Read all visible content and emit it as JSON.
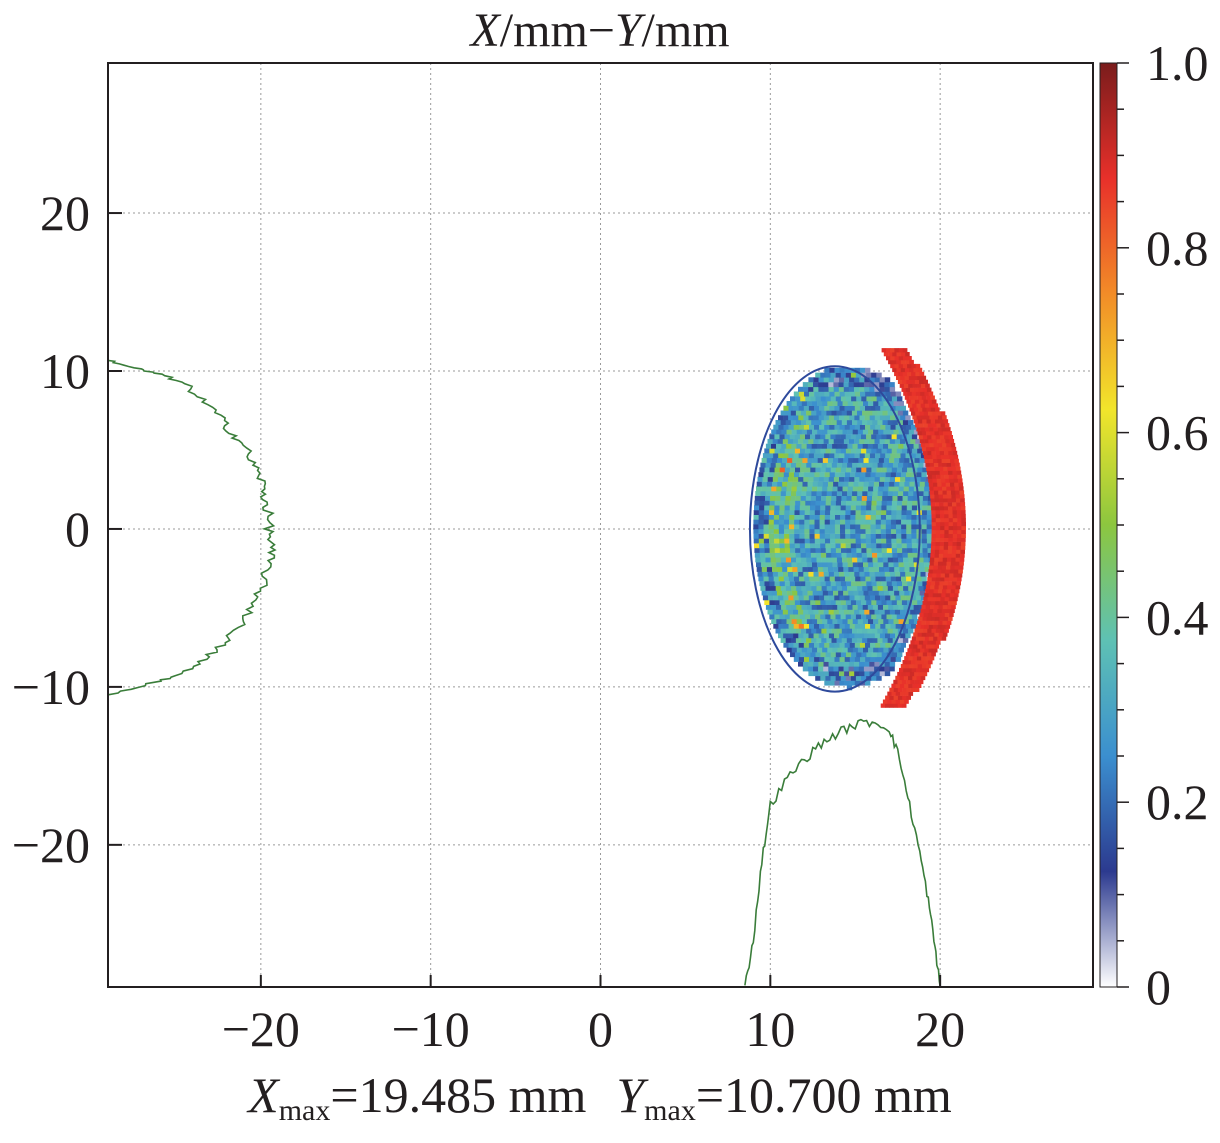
{
  "chart_data": {
    "type": "heatmap",
    "title": {
      "x_var": "X",
      "sep1": "/mm−",
      "y_var": "Y",
      "sep2": "/mm"
    },
    "xlim": [
      -29,
      29
    ],
    "ylim": [
      -29,
      29.5
    ],
    "x_ticks": [
      -20,
      -10,
      0,
      10,
      20
    ],
    "x_tick_labels": [
      "−20",
      "−10",
      "0",
      "10",
      "20"
    ],
    "y_ticks": [
      20,
      10,
      0,
      -10,
      -20
    ],
    "y_tick_labels": [
      "20",
      "10",
      "0",
      "−10",
      "−20"
    ],
    "grid": true,
    "colorbar": {
      "range": [
        0,
        1
      ],
      "ticks": [
        0,
        0.2,
        0.4,
        0.6,
        0.8,
        1.0
      ],
      "tick_labels": [
        "0",
        "0.2",
        "0.4",
        "0.6",
        "0.8",
        "1.0"
      ],
      "colors": [
        "#ffffff",
        "#2c3a8f",
        "#3b8fcf",
        "#5ec1b4",
        "#8cc63f",
        "#f2e52b",
        "#f28c28",
        "#e8302a",
        "#7a1c1c"
      ]
    },
    "beam_spot": {
      "center_x": 14.5,
      "center_y": 0,
      "radius_x": 5.5,
      "radius_y": 10.2,
      "mean_intensity": 0.3
    },
    "beam_ellipse_outline": {
      "center_x": 13.8,
      "center_y": 0,
      "radius_x": 5.0,
      "radius_y": 10.3,
      "color": "#2e4a9c"
    },
    "crescent": {
      "inner_x_at_center": 19.5,
      "outer_x_at_center": 21.5,
      "y_min": -11.3,
      "y_max": 11.3,
      "intensity": 0.88,
      "color": "#e02a2a"
    },
    "y_projection": {
      "color": "#3a7d3a",
      "points": [
        [
          -29,
          10.7
        ],
        [
          -27.5,
          10.2
        ],
        [
          -26,
          9.8
        ],
        [
          -24.5,
          9.2
        ],
        [
          -23.5,
          8.2
        ],
        [
          -22.5,
          7.2
        ],
        [
          -21.8,
          6.2
        ],
        [
          -21,
          5.3
        ],
        [
          -20.5,
          4.2
        ],
        [
          -20,
          3.2
        ],
        [
          -19.8,
          2.2
        ],
        [
          -19.6,
          1.2
        ],
        [
          -19.5,
          0
        ],
        [
          -19.4,
          -1
        ],
        [
          -19.5,
          -2
        ],
        [
          -19.8,
          -3.2
        ],
        [
          -20.2,
          -4.3
        ],
        [
          -20.8,
          -5.5
        ],
        [
          -21.6,
          -6.6
        ],
        [
          -22.5,
          -7.5
        ],
        [
          -23.5,
          -8.4
        ],
        [
          -25,
          -9.3
        ],
        [
          -26.5,
          -9.8
        ],
        [
          -29,
          -10.5
        ]
      ]
    },
    "x_projection": {
      "color": "#3a7d3a",
      "points": [
        [
          8.5,
          -29
        ],
        [
          9,
          -26
        ],
        [
          9.5,
          -21
        ],
        [
          10,
          -17.5
        ],
        [
          11,
          -15.8
        ],
        [
          12,
          -14.6
        ],
        [
          13,
          -13.6
        ],
        [
          14,
          -12.9
        ],
        [
          15,
          -12.4
        ],
        [
          16,
          -12.2
        ],
        [
          17,
          -12.6
        ],
        [
          17.6,
          -14.5
        ],
        [
          18.2,
          -17.5
        ],
        [
          18.8,
          -20.5
        ],
        [
          19.3,
          -23.5
        ],
        [
          19.7,
          -26.5
        ],
        [
          20,
          -29
        ]
      ]
    }
  },
  "footer": {
    "x_var": "X",
    "x_sub": "max",
    "x_value": "=19.485 mm",
    "y_var": "Y",
    "y_sub": "max",
    "y_value": "=10.700 mm"
  }
}
